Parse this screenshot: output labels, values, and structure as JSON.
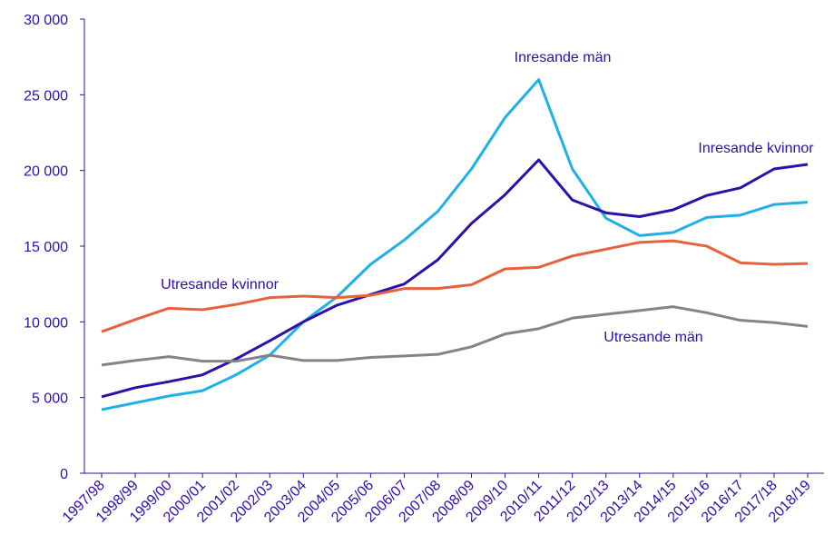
{
  "chart_data": {
    "type": "line",
    "categories": [
      "1997/98",
      "1998/99",
      "1999/00",
      "2000/01",
      "2001/02",
      "2002/03",
      "2003/04",
      "2004/05",
      "2005/06",
      "2006/07",
      "2007/08",
      "2008/09",
      "2009/10",
      "2010/11",
      "2011/12",
      "2012/13",
      "2013/14",
      "2014/15",
      "2015/16",
      "2016/17",
      "2017/18",
      "2018/19"
    ],
    "series": [
      {
        "name": "Inresande män",
        "color": "#1fb1e6",
        "values": [
          4200,
          4650,
          5100,
          5450,
          6500,
          7800,
          10000,
          11650,
          13800,
          15400,
          17300,
          20100,
          23500,
          26000,
          20100,
          16850,
          15700,
          15900,
          16900,
          17050,
          17750,
          17900
        ]
      },
      {
        "name": "Inresande kvinnor",
        "color": "#2e0fa8",
        "values": [
          5050,
          5650,
          6050,
          6500,
          7550,
          8750,
          10000,
          11100,
          11800,
          12500,
          14100,
          16500,
          18400,
          20700,
          18050,
          17200,
          16950,
          17400,
          18350,
          18850,
          20100,
          20400
        ]
      },
      {
        "name": "Utresande kvinnor",
        "color": "#e8613c",
        "values": [
          9350,
          10150,
          10900,
          10800,
          11150,
          11600,
          11700,
          11600,
          11750,
          12200,
          12200,
          12450,
          13500,
          13600,
          14350,
          14800,
          15250,
          15350,
          15000,
          13900,
          13800,
          13850
        ]
      },
      {
        "name": "Utresande män",
        "color": "#848484",
        "values": [
          7150,
          7450,
          7700,
          7400,
          7400,
          7800,
          7450,
          7450,
          7650,
          7750,
          7850,
          8350,
          9200,
          9550,
          10250,
          10500,
          10750,
          11000,
          10600,
          10100,
          9950,
          9700
        ]
      }
    ],
    "ylim": [
      0,
      30000
    ],
    "yticks": [
      0,
      {
        "value": 5000,
        "label": "5 000"
      },
      {
        "value": 10000,
        "label": "10 000"
      },
      {
        "value": 15000,
        "label": "15 000"
      },
      {
        "value": 20000,
        "label": "20 000"
      },
      {
        "value": 25000,
        "label": "25 000"
      },
      {
        "value": 30000,
        "label": "30 000"
      }
    ]
  }
}
